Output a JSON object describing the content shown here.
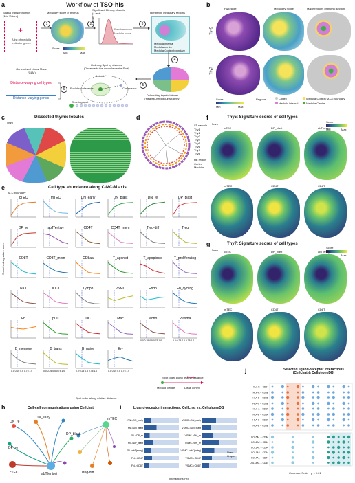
{
  "panel_a": {
    "label": "a",
    "title_prefix": "Workflow of ",
    "title_bold": "TSO-his",
    "steps": {
      "s1": "Spatial transcriptomics\n(10x Visium)",
      "s2": "Medullary score of thymus",
      "s3": "Significant filtering of spots\n(z-test)",
      "s4": "Identifying medullary regions",
      "s5": "Delineating thymic lobules\n(Nearest-neighbour strategy)",
      "s6": "Ordering Spot by distance\n(Distance to the medulla centre Spot)",
      "s7": "Generalised Linear Model\n(GLM)"
    },
    "numbers": [
      "1",
      "2",
      "3",
      "4",
      "5",
      "6"
    ],
    "gene_list": "A list of medulla\nindicator genes",
    "score_label": "Score",
    "min_label": "Min",
    "max_label": "Max",
    "density_label": "Density",
    "random_score": "Random score",
    "medulla_score": "Medulla score",
    "legend_items": [
      "Medulla internal",
      "Medulla centre",
      "Medulla-Cortex boundary"
    ],
    "lobule": "Lobule",
    "euclidean": "Euclidean distance",
    "cortex_spot": "Cortex spot",
    "ordering_spot": "Ordering spot",
    "dv_cell_types": "Distance-varying cell types",
    "dv_genes": "Distance-varying genes"
  },
  "panel_b": {
    "label": "b",
    "col1": "H&E slide",
    "col2": "Medullary Score",
    "col3": "Major regions of thymic section",
    "row1": "Thy5",
    "row2": "Thy7",
    "score_label": "Score",
    "min_label": "Min",
    "max_label": "Max",
    "regions_label": "Regions",
    "regions": [
      "Cortex",
      "Medulla internal",
      "Medulla-Cortex (M-C) boundary",
      "Medulla Centre"
    ],
    "colors": {
      "cortex": "#c9c9c9",
      "internal": "#d17fd6",
      "boundary": "#ffd84a",
      "centre": "#3cb043"
    }
  },
  "panel_c": {
    "label": "c",
    "title": "Dissected thymic lobules",
    "scale": "5mm"
  },
  "panel_d": {
    "label": "d",
    "legend_title1": "ST sample",
    "samples": [
      "Thy1",
      "Thy2",
      "Thy3",
      "Thy4",
      "Thy5",
      "Thy6",
      "Thy7",
      "Thy8"
    ],
    "legend_title2": "HE region",
    "regions": [
      "Cortex",
      "Medulla"
    ]
  },
  "panel_e": {
    "label": "e",
    "title": "Cell type abundance along C-MC-M axis",
    "mc_boundary": "M-C boundary",
    "ylabel": "Smoothed signature score",
    "xlabel": "Spot order along relative distance",
    "legend_title": "Spot order along relative distance",
    "xaxis_label": "X-axis",
    "medulla_centre": "Medulla centre",
    "distal_cortex": "Distal cortex",
    "xtick": "0.0 0.25 0.5 0.75 1.0"
  },
  "panel_f": {
    "label": "f",
    "title": "Thy5: Signature scores of cell types",
    "scale": "5mm",
    "score_label": "Score",
    "min_label": "Min",
    "max_label": "Max",
    "top": [
      "cTEC",
      "DP_blast",
      "abT(entry)"
    ],
    "bottom": [
      "mTEC",
      "CD4T",
      "CD8T"
    ]
  },
  "panel_g": {
    "label": "g",
    "title": "Thy7: Signature scores of cell types",
    "scale": "5mm",
    "score_label": "Score",
    "min_label": "Min",
    "max_label": "Max",
    "top": [
      "cTEC",
      "DP_blast",
      "abT(entry)"
    ],
    "bottom": [
      "mTEC",
      "CD4T",
      "CD8T"
    ]
  },
  "panel_h": {
    "label": "h",
    "title": "Cell-cell communications using Cellchat",
    "nodes": [
      "DN_re",
      "DN_early",
      "DP_re",
      "DP_blast",
      "abT(entry)",
      "cTEC",
      "mTEC",
      "Treg-diff"
    ]
  },
  "panel_i": {
    "label": "i",
    "title": "Ligand-receptor interactions: Cellchat vs. CellphoneDB",
    "xlabel": "Interactions (%)",
    "legend": [
      "Share",
      "Unique"
    ],
    "left_pairs": [
      "FN->DN_early",
      "FN->DN_blast",
      "FN->DP_re",
      "FN->DP_blast",
      "FN->abT(entry)",
      "FN->CD4T",
      "FN->CD8T"
    ],
    "right_pairs": [
      "VSMC->DN_early",
      "VSMC->DN_blast",
      "VSMC->DN_re",
      "VSMC->DP_re",
      "VSMC->abT(entry)",
      "VSMC->CD4T",
      "VSMC->CD8T"
    ]
  },
  "panel_j": {
    "label": "j",
    "title": "Selected ligand-receptor interactions\n(Cellchat & CellphoneDB)",
    "rows_top": [
      "HLA-E -- CD94",
      "HLA-A -- CD8B",
      "HLA-B -- CD8B",
      "HLA-C -- CD8B",
      "HLA-A -- CD8A",
      "HLA-B -- CD8A",
      "HLA-C -- CD8A",
      "HLA-E -- CD8B"
    ],
    "rows_bottom": [
      "COL6A1 -- CD44",
      "COL6A2 -- CD44",
      "COL1A1 -- CD44",
      "COL1A2 -- CD44",
      "COL4A1 -- CD44",
      "COL18A1 -- CD44"
    ],
    "legend_title": "Commun. Prob.",
    "pval": "p < 0.01"
  },
  "chart_data": {
    "type": "line",
    "title": "Cell type abundance along C-MC-M axis",
    "xlabel": "Spot order along relative distance",
    "ylabel": "Smoothed signature score",
    "x": [
      0,
      0.25,
      0.5,
      0.75,
      1.0
    ],
    "series": [
      {
        "name": "cTEC",
        "color": "#e07a2c",
        "values": [
          -1.2,
          0.3,
          0.8,
          0.95,
          1.0
        ]
      },
      {
        "name": "mTEC",
        "color": "#6fb8e8",
        "values": [
          1.2,
          0.1,
          -0.6,
          -0.8,
          -0.85
        ]
      },
      {
        "name": "DN_early",
        "color": "#1f6bb5",
        "values": [
          -1.0,
          -0.2,
          0.6,
          0.9,
          1.0
        ]
      },
      {
        "name": "DN_blast",
        "color": "#35a84a",
        "values": [
          -1.1,
          0.2,
          0.7,
          0.9,
          0.95
        ]
      },
      {
        "name": "DN_re",
        "color": "#2e8b3c",
        "values": [
          -1.0,
          0.1,
          0.7,
          0.9,
          1.0
        ]
      },
      {
        "name": "DP_blast",
        "color": "#d93a3a",
        "values": [
          -1.2,
          0.4,
          0.8,
          0.9,
          0.95
        ]
      },
      {
        "name": "DP_re",
        "color": "#c0392b",
        "values": [
          -1.2,
          0.3,
          0.8,
          0.9,
          0.95
        ]
      },
      {
        "name": "abT(entry)",
        "color": "#8e44ad",
        "values": [
          0.8,
          0.6,
          0.0,
          -0.6,
          -0.9
        ]
      },
      {
        "name": "CD4T",
        "color": "#8b5a2b",
        "values": [
          1.2,
          0.4,
          -0.5,
          -0.8,
          -0.9
        ]
      },
      {
        "name": "CD4T_mem",
        "color": "#e67ec3",
        "values": [
          1.1,
          0.2,
          -0.6,
          -0.8,
          -0.85
        ]
      },
      {
        "name": "Treg-diff",
        "color": "#7f7f7f",
        "values": [
          1.1,
          0.1,
          -0.6,
          -0.8,
          -0.85
        ]
      },
      {
        "name": "Treg",
        "color": "#b5b52a",
        "values": [
          1.2,
          0.2,
          -0.6,
          -0.8,
          -0.85
        ]
      },
      {
        "name": "CD8T",
        "color": "#17becf",
        "values": [
          1.1,
          0.3,
          -0.5,
          -0.8,
          -0.9
        ]
      },
      {
        "name": "CD8T_mem",
        "color": "#1f77b4",
        "values": [
          0.9,
          0.2,
          -0.4,
          -0.6,
          -0.7
        ]
      },
      {
        "name": "CD8aa",
        "color": "#ff7f0e",
        "values": [
          1.1,
          0.2,
          -0.6,
          -0.8,
          -0.85
        ]
      },
      {
        "name": "T_agonist",
        "color": "#2ca02c",
        "values": [
          1.0,
          0.2,
          -0.5,
          -0.7,
          -0.8
        ]
      },
      {
        "name": "T_apoptosis",
        "color": "#d62728",
        "values": [
          0.8,
          0.4,
          -0.3,
          -0.6,
          -0.8
        ]
      },
      {
        "name": "T_proliferating",
        "color": "#9467bd",
        "values": [
          1.1,
          0.1,
          -0.6,
          -0.8,
          -0.85
        ]
      },
      {
        "name": "NKT",
        "color": "#8c564b",
        "values": [
          1.0,
          0.2,
          -0.5,
          -0.7,
          -0.8
        ]
      },
      {
        "name": "ILC3",
        "color": "#e377c2",
        "values": [
          1.0,
          0.3,
          -0.5,
          -0.7,
          -0.8
        ]
      },
      {
        "name": "Lymph",
        "color": "#7f7f7f",
        "values": [
          1.1,
          0.1,
          -0.6,
          -0.8,
          -0.85
        ]
      },
      {
        "name": "VSMC",
        "color": "#bcbd22",
        "values": [
          0.2,
          -0.3,
          0.0,
          0.3,
          0.5
        ]
      },
      {
        "name": "Endo",
        "color": "#17becf",
        "values": [
          0.4,
          -0.2,
          0.0,
          0.2,
          0.3
        ]
      },
      {
        "name": "Fb_cycling",
        "color": "#1f77b4",
        "values": [
          1.0,
          0.2,
          -0.5,
          -0.7,
          -0.8
        ]
      },
      {
        "name": "Fb",
        "color": "#ff7f0e",
        "values": [
          0.3,
          0.1,
          0.0,
          0.2,
          0.4
        ]
      },
      {
        "name": "pDC",
        "color": "#2ca02c",
        "values": [
          1.1,
          0.2,
          -0.6,
          -0.8,
          -0.85
        ]
      },
      {
        "name": "DC",
        "color": "#d62728",
        "values": [
          1.0,
          0.2,
          -0.5,
          -0.7,
          -0.8
        ]
      },
      {
        "name": "Mac",
        "color": "#9467bd",
        "values": [
          1.1,
          0.3,
          -0.5,
          -0.8,
          -0.85
        ]
      },
      {
        "name": "Mono",
        "color": "#8c564b",
        "values": [
          1.0,
          0.2,
          -0.5,
          -0.7,
          -0.8
        ]
      },
      {
        "name": "Plasma",
        "color": "#e377c2",
        "values": [
          1.1,
          0.2,
          -0.6,
          -0.8,
          -0.85
        ]
      },
      {
        "name": "B_memory",
        "color": "#7f7f7f",
        "values": [
          1.0,
          0.1,
          -0.5,
          -0.7,
          -0.8
        ]
      },
      {
        "name": "B_trans",
        "color": "#bcbd22",
        "values": [
          1.1,
          0.2,
          -0.6,
          -0.8,
          -0.85
        ]
      },
      {
        "name": "B_naive",
        "color": "#17becf",
        "values": [
          1.0,
          0.2,
          -0.5,
          -0.7,
          -0.8
        ]
      },
      {
        "name": "Ery",
        "color": "#1f77b4",
        "values": [
          -0.2,
          0.2,
          0.4,
          0.0,
          -0.3
        ]
      }
    ]
  }
}
